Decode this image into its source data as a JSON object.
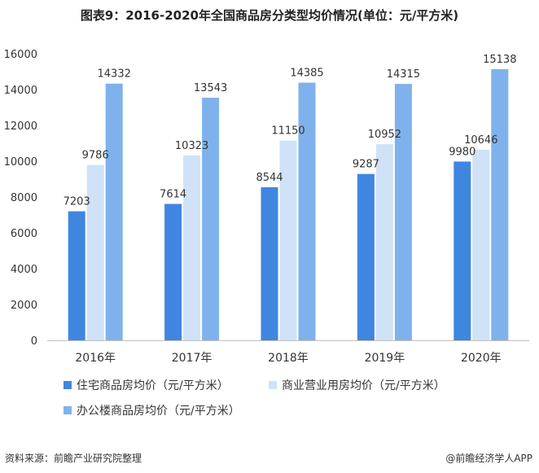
{
  "chart_data": {
    "type": "bar",
    "title": "图表9：2016-2020年全国商品房分类型均价情况(单位：元/平方米)",
    "categories": [
      "2016年",
      "2017年",
      "2018年",
      "2019年",
      "2020年"
    ],
    "series": [
      {
        "name": "住宅商品房均价（元/平方米）",
        "color": "#3f86e0",
        "values": [
          7203,
          7614,
          8544,
          9287,
          9980
        ]
      },
      {
        "name": "商业营业用房均价（元/平方米）",
        "color": "#cfe2f8",
        "values": [
          9786,
          10323,
          11150,
          10952,
          10646
        ]
      },
      {
        "name": "办公楼商品房均价（元/平方米）",
        "color": "#7fb2ec",
        "values": [
          14332,
          13543,
          14385,
          14315,
          15138
        ]
      }
    ],
    "ylim": [
      0,
      16000
    ],
    "yticks": [
      0,
      2000,
      4000,
      6000,
      8000,
      10000,
      12000,
      14000,
      16000
    ],
    "grid": false,
    "legend": "bottom"
  },
  "footer": {
    "source": "资料来源：前瞻产业研究院整理",
    "brand": "@前瞻经济学人APP"
  }
}
